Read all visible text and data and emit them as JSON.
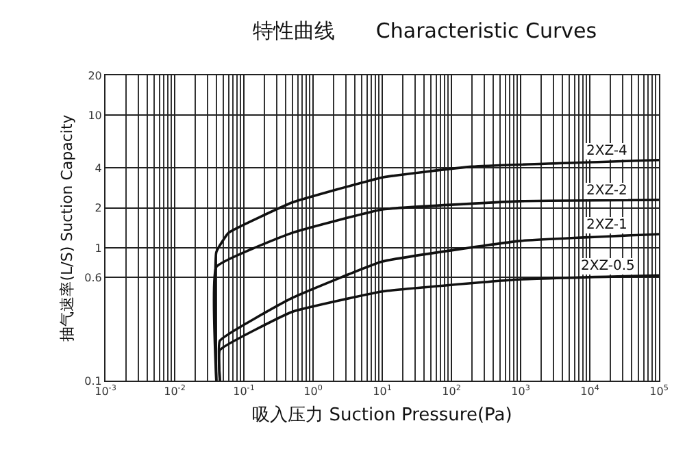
{
  "chart_data": {
    "type": "line",
    "title": "特性曲线　　Characteristic Curves",
    "xlabel": "吸入压力 Suction Pressure(Pa)",
    "ylabel": "抽气速率(L/S) Suction Capacity",
    "log": "xy",
    "grid": true,
    "legend": false,
    "marker": "none",
    "line_style": "solid",
    "xlim": [
      0.001,
      100000
    ],
    "xticks": [
      {
        "value": 0.001,
        "label": "10$^{-3}$"
      },
      {
        "value": 0.01,
        "label": "10$^{-2}$"
      },
      {
        "value": 0.1,
        "label": "10$^{-1}$"
      },
      {
        "value": 1,
        "label": "10$^{0}$"
      },
      {
        "value": 10,
        "label": "10$^{1}$"
      },
      {
        "value": 100,
        "label": "10$^{2}$"
      },
      {
        "value": 1000,
        "label": "10$^{3}$"
      },
      {
        "value": 10000,
        "label": "10$^{4}$"
      },
      {
        "value": 100000,
        "label": "10$^{5}$"
      }
    ],
    "ylim": [
      0.1,
      20
    ],
    "yticks": [
      0.1,
      0.6,
      1,
      2,
      4,
      10,
      20
    ],
    "series": [
      {
        "name": "2XZ-4",
        "color": "#111111",
        "x": [
          0.04,
          0.04,
          0.06,
          0.5,
          10,
          200,
          100000
        ],
        "values": [
          0.1,
          0.93,
          1.3,
          2.2,
          3.4,
          4.1,
          4.6
        ]
      },
      {
        "name": "2XZ-2",
        "color": "#111111",
        "x": [
          0.04,
          0.04,
          0.5,
          10,
          1000,
          100000
        ],
        "values": [
          0.1,
          0.72,
          1.3,
          1.95,
          2.25,
          2.3
        ]
      },
      {
        "name": "2XZ-1",
        "color": "#111111",
        "x": [
          0.045,
          0.045,
          0.5,
          10,
          1000,
          100000
        ],
        "values": [
          0.1,
          0.2,
          0.42,
          0.79,
          1.13,
          1.27
        ]
      },
      {
        "name": "2XZ-0.5",
        "color": "#111111",
        "x": [
          0.045,
          0.045,
          0.5,
          10,
          1000,
          100000
        ],
        "values": [
          0.1,
          0.17,
          0.33,
          0.47,
          0.58,
          0.62
        ]
      }
    ]
  }
}
